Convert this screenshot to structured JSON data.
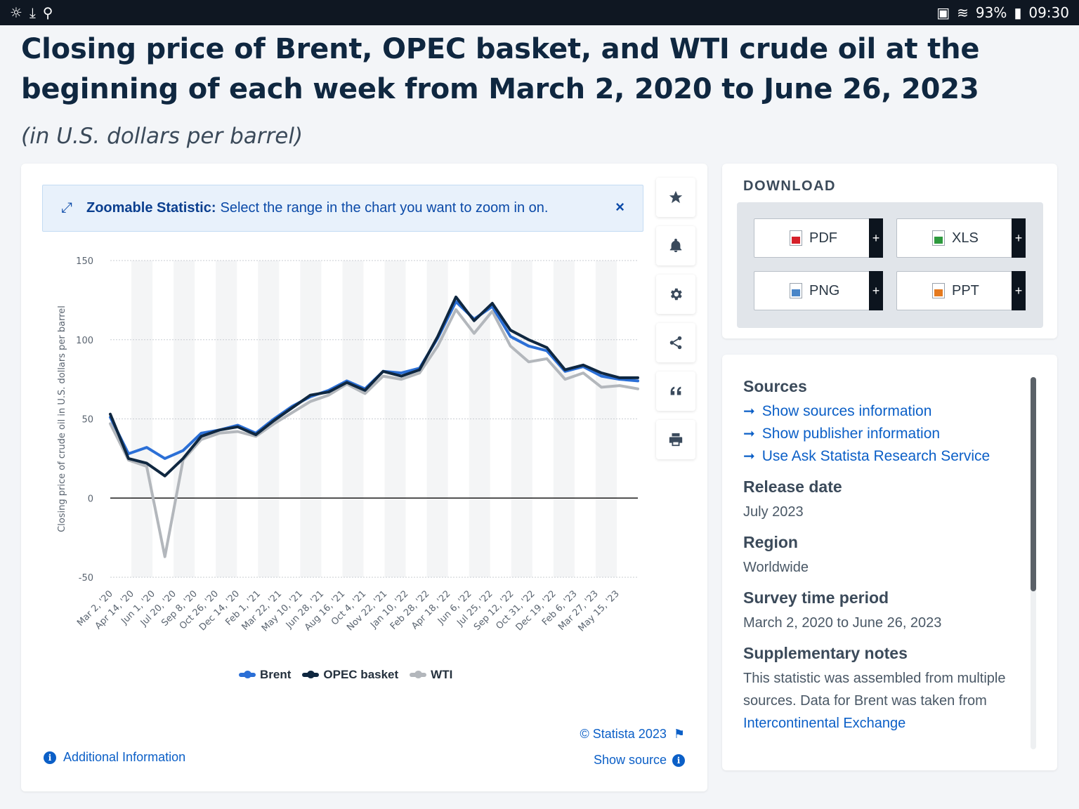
{
  "statusbar": {
    "battery": "93%",
    "time": "09:30"
  },
  "header": {
    "title": "Closing price of Brent, OPEC basket, and WTI crude oil at the beginning of each week from March 2, 2020 to June 26, 2023",
    "subtitle": "(in U.S. dollars per barrel)"
  },
  "zoom_banner": {
    "label": "Zoomable Statistic:",
    "text": "Select the range in the chart you want to zoom in on."
  },
  "toolbar": {
    "icons": [
      "star-icon",
      "bell-icon",
      "gear-icon",
      "share-icon",
      "quote-icon",
      "print-icon"
    ]
  },
  "chart_footer": {
    "credit": "© Statista 2023",
    "show_source": "Show source",
    "additional_info": "Additional Information"
  },
  "download": {
    "title": "DOWNLOAD",
    "buttons": [
      {
        "label": "PDF",
        "plus": "+"
      },
      {
        "label": "XLS",
        "plus": "+"
      },
      {
        "label": "PNG",
        "plus": "+"
      },
      {
        "label": "PPT",
        "plus": "+"
      }
    ]
  },
  "sources": {
    "heading": "Sources",
    "links": [
      "Show sources information",
      "Show publisher information",
      "Use Ask Statista Research Service"
    ],
    "release_heading": "Release date",
    "release": "July 2023",
    "region_heading": "Region",
    "region": "Worldwide",
    "period_heading": "Survey time period",
    "period": "March 2, 2020 to June 26, 2023",
    "notes_heading": "Supplementary notes",
    "notes_text": "This statistic was assembled from multiple sources. Data for Brent was taken from",
    "notes_link": "Intercontinental Exchange"
  },
  "chart_data": {
    "type": "line",
    "title": "",
    "ylabel": "Closing price of crude oil in U.S. dollars per barrel",
    "xlabel": "",
    "ylim": [
      -50,
      150
    ],
    "yticks": [
      150,
      100,
      50,
      0,
      -50
    ],
    "grid": true,
    "legend_position": "bottom",
    "xticks": [
      "Mar 2, '20",
      "Apr 14, '20",
      "Jun 1, '20",
      "Jul 20, '20",
      "Sep 8, '20",
      "Oct 26, '20",
      "Dec 14, '20",
      "Feb 1, '21",
      "Mar 22, '21",
      "May 10, '21",
      "Jun 28, '21",
      "Aug 16, '21",
      "Oct 4, '21",
      "Nov 22, '21",
      "Jan 10, '22",
      "Feb 28, '22",
      "Apr 18, '22",
      "Jun 6, '22",
      "Jul 25, '22",
      "Sep 12, '22",
      "Oct 31, '22",
      "Dec 19, '22",
      "Feb 6, '23",
      "Mar 27, '23",
      "May 15, '23"
    ],
    "x": [
      "Mar 2, '20",
      "Mar 23, '20",
      "Apr 14, '20",
      "Apr 20, '20",
      "May 4, '20",
      "Jun 1, '20",
      "Jul 20, '20",
      "Sep 8, '20",
      "Oct 26, '20",
      "Dec 14, '20",
      "Feb 1, '21",
      "Mar 22, '21",
      "May 10, '21",
      "Jun 28, '21",
      "Aug 16, '21",
      "Oct 4, '21",
      "Nov 22, '21",
      "Jan 10, '22",
      "Feb 28, '22",
      "Mar 7, '22",
      "Apr 18, '22",
      "Jun 6, '22",
      "Jul 25, '22",
      "Sep 12, '22",
      "Oct 31, '22",
      "Dec 19, '22",
      "Feb 6, '23",
      "Mar 27, '23",
      "May 15, '23",
      "Jun 26, '23"
    ],
    "series": [
      {
        "name": "Brent",
        "color": "#2b6fd6",
        "values": [
          51,
          28,
          32,
          25,
          30,
          41,
          43,
          46,
          41,
          50,
          58,
          64,
          68,
          74,
          69,
          80,
          79,
          82,
          101,
          124,
          113,
          121,
          102,
          96,
          93,
          80,
          83,
          77,
          75,
          74
        ]
      },
      {
        "name": "OPEC basket",
        "color": "#0f2740",
        "values": [
          53,
          25,
          22,
          14,
          25,
          39,
          43,
          45,
          40,
          49,
          57,
          65,
          67,
          73,
          68,
          80,
          77,
          81,
          102,
          127,
          112,
          123,
          106,
          100,
          95,
          81,
          84,
          79,
          76,
          76
        ]
      },
      {
        "name": "WTI",
        "color": "#b3b7bc",
        "values": [
          47,
          24,
          20,
          -37,
          24,
          37,
          41,
          42,
          39,
          47,
          54,
          61,
          65,
          72,
          66,
          77,
          75,
          79,
          96,
          119,
          104,
          118,
          96,
          86,
          88,
          75,
          79,
          70,
          71,
          69
        ]
      }
    ]
  }
}
